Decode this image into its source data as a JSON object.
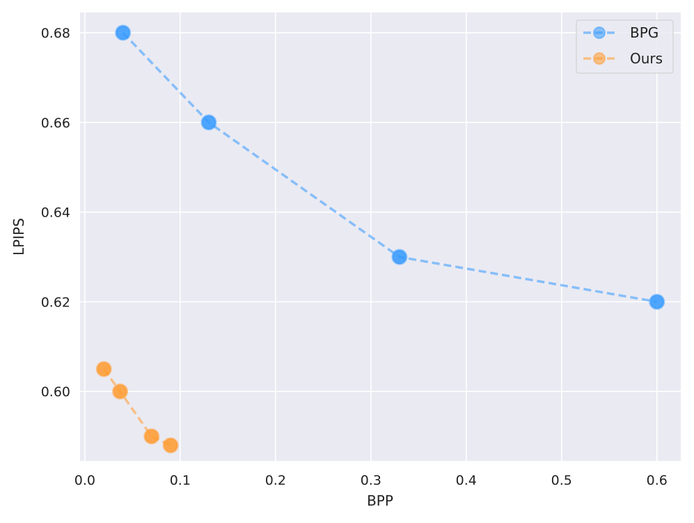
{
  "chart_data": {
    "type": "line",
    "title": "",
    "xlabel": "BPP",
    "ylabel": "LPIPS",
    "xlim": [
      -0.005,
      0.625
    ],
    "ylim": [
      0.5845,
      0.6845
    ],
    "xticks": [
      0.0,
      0.1,
      0.2,
      0.3,
      0.4,
      0.5,
      0.6
    ],
    "xtick_labels": [
      "0.0",
      "0.1",
      "0.2",
      "0.3",
      "0.4",
      "0.5",
      "0.6"
    ],
    "yticks": [
      0.6,
      0.62,
      0.64,
      0.66,
      0.68
    ],
    "ytick_labels": [
      "0.60",
      "0.62",
      "0.64",
      "0.66",
      "0.68"
    ],
    "grid": true,
    "legend_position": "top-right",
    "series": [
      {
        "name": "BPG",
        "color": "#3399ff",
        "line_style": "dashed",
        "marker": "circle",
        "x": [
          0.04,
          0.13,
          0.33,
          0.6
        ],
        "y": [
          0.68,
          0.66,
          0.63,
          0.62
        ]
      },
      {
        "name": "Ours",
        "color": "#ff9a2e",
        "line_style": "dashed",
        "marker": "circle",
        "x": [
          0.02,
          0.037,
          0.07,
          0.09
        ],
        "y": [
          0.605,
          0.6,
          0.59,
          0.588
        ]
      }
    ]
  }
}
